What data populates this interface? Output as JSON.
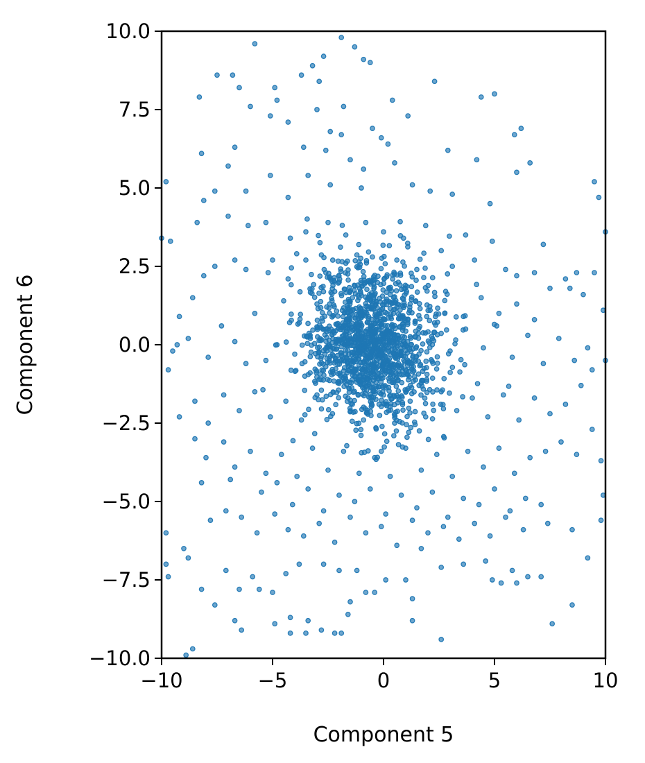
{
  "chart_data": {
    "type": "scatter",
    "xlabel": "Component 5",
    "ylabel": "Component 6",
    "xlim": [
      -10,
      10
    ],
    "ylim": [
      -10,
      10
    ],
    "xticks": [
      -10,
      -5,
      0,
      5,
      10
    ],
    "yticks": [
      -10.0,
      -7.5,
      -5.0,
      -2.5,
      0.0,
      2.5,
      5.0,
      7.5,
      10.0
    ],
    "xtick_labels": [
      "−10",
      "−5",
      "0",
      "5",
      "10"
    ],
    "ytick_labels": [
      "−10.0",
      "−7.5",
      "−5.0",
      "−2.5",
      "0.0",
      "2.5",
      "5.0",
      "7.5",
      "10.0"
    ],
    "grid": false,
    "legend": "none",
    "series": [
      {
        "color": "#1f77b4",
        "points": [
          [
            -1.9,
            9.8
          ],
          [
            -5.8,
            9.6
          ],
          [
            -1.3,
            9.5
          ],
          [
            -0.9,
            9.1
          ],
          [
            -0.6,
            9.0
          ],
          [
            -2.7,
            9.2
          ],
          [
            -3.2,
            8.9
          ],
          [
            -7.5,
            8.6
          ],
          [
            -6.8,
            8.6
          ],
          [
            -6.5,
            8.2
          ],
          [
            -4.9,
            8.2
          ],
          [
            -2.9,
            8.4
          ],
          [
            -4.8,
            7.8
          ],
          [
            -3.7,
            8.6
          ],
          [
            2.3,
            8.4
          ],
          [
            5.0,
            8.0
          ],
          [
            4.4,
            7.9
          ],
          [
            -8.3,
            7.9
          ],
          [
            -6.0,
            7.6
          ],
          [
            -5.1,
            7.3
          ],
          [
            -4.3,
            7.1
          ],
          [
            -3.0,
            7.5
          ],
          [
            -1.8,
            7.6
          ],
          [
            0.4,
            7.8
          ],
          [
            1.1,
            7.3
          ],
          [
            -2.4,
            6.8
          ],
          [
            -1.9,
            6.7
          ],
          [
            -0.5,
            6.9
          ],
          [
            -0.1,
            6.6
          ],
          [
            0.2,
            6.4
          ],
          [
            -6.7,
            6.3
          ],
          [
            -8.2,
            6.1
          ],
          [
            -7.0,
            5.7
          ],
          [
            -3.6,
            6.3
          ],
          [
            -2.6,
            6.2
          ],
          [
            -1.5,
            5.9
          ],
          [
            -0.9,
            5.6
          ],
          [
            0.5,
            5.8
          ],
          [
            2.9,
            6.2
          ],
          [
            4.2,
            5.9
          ],
          [
            5.9,
            6.7
          ],
          [
            6.2,
            6.9
          ],
          [
            6.6,
            5.8
          ],
          [
            6.0,
            5.5
          ],
          [
            -9.8,
            5.2
          ],
          [
            -8.1,
            4.6
          ],
          [
            -7.6,
            4.9
          ],
          [
            -6.2,
            4.9
          ],
          [
            -5.1,
            5.4
          ],
          [
            -4.3,
            4.7
          ],
          [
            -3.4,
            5.4
          ],
          [
            -2.4,
            5.1
          ],
          [
            -1.0,
            5.0
          ],
          [
            1.3,
            5.1
          ],
          [
            2.1,
            4.9
          ],
          [
            3.1,
            4.8
          ],
          [
            4.8,
            4.5
          ],
          [
            -8.4,
            3.9
          ],
          [
            -7.0,
            4.1
          ],
          [
            -6.1,
            3.8
          ],
          [
            -5.3,
            3.9
          ],
          [
            -4.2,
            3.4
          ],
          [
            -3.5,
            3.6
          ],
          [
            -2.5,
            3.9
          ],
          [
            -1.7,
            3.5
          ],
          [
            -0.8,
            3.9
          ],
          [
            0.0,
            3.6
          ],
          [
            0.9,
            3.4
          ],
          [
            1.9,
            3.8
          ],
          [
            3.7,
            3.5
          ],
          [
            4.9,
            3.3
          ],
          [
            9.5,
            5.2
          ],
          [
            9.7,
            4.7
          ],
          [
            -10.0,
            3.4
          ],
          [
            -9.6,
            3.3
          ],
          [
            -7.6,
            2.5
          ],
          [
            -6.7,
            2.7
          ],
          [
            -6.2,
            2.4
          ],
          [
            -5.0,
            2.7
          ],
          [
            -4.3,
            2.1
          ],
          [
            -3.5,
            2.7
          ],
          [
            -2.6,
            2.3
          ],
          [
            -1.7,
            2.6
          ],
          [
            -0.5,
            2.8
          ],
          [
            0.6,
            2.7
          ],
          [
            1.5,
            2.4
          ],
          [
            2.6,
            3.0
          ],
          [
            3.1,
            2.5
          ],
          [
            4.1,
            2.7
          ],
          [
            5.5,
            2.4
          ],
          [
            6.0,
            2.2
          ],
          [
            6.8,
            2.3
          ],
          [
            7.2,
            3.2
          ],
          [
            8.2,
            2.1
          ],
          [
            8.7,
            2.3
          ],
          [
            9.5,
            2.3
          ],
          [
            10.0,
            3.6
          ],
          [
            -8.1,
            2.2
          ],
          [
            -5.2,
            2.3
          ],
          [
            -7.3,
            0.6
          ],
          [
            -9.2,
            0.9
          ],
          [
            -8.6,
            1.5
          ],
          [
            -5.8,
            1.0
          ],
          [
            -4.5,
            1.4
          ],
          [
            -3.8,
            0.7
          ],
          [
            -3.0,
            1.3
          ],
          [
            -2.2,
            1.7
          ],
          [
            -1.4,
            1.5
          ],
          [
            -0.6,
            1.2
          ],
          [
            0.3,
            1.6
          ],
          [
            1.2,
            1.3
          ],
          [
            2.1,
            1.1
          ],
          [
            2.8,
            1.7
          ],
          [
            3.6,
            0.9
          ],
          [
            4.4,
            1.5
          ],
          [
            5.2,
            1.0
          ],
          [
            6.0,
            1.3
          ],
          [
            6.8,
            0.8
          ],
          [
            7.5,
            1.8
          ],
          [
            8.4,
            1.8
          ],
          [
            9.0,
            1.6
          ],
          [
            9.9,
            1.1
          ],
          [
            -9.7,
            -0.8
          ],
          [
            -9.3,
            0.0
          ],
          [
            -9.5,
            -0.2
          ],
          [
            -8.8,
            0.2
          ],
          [
            -7.9,
            -0.4
          ],
          [
            -6.7,
            0.1
          ],
          [
            -6.2,
            -0.6
          ],
          [
            -5.3,
            -0.5
          ],
          [
            -4.8,
            0.0
          ],
          [
            -4.0,
            -0.3
          ],
          [
            -3.3,
            0.2
          ],
          [
            -2.6,
            -0.7
          ],
          [
            -1.8,
            0.3
          ],
          [
            -1.1,
            -0.2
          ],
          [
            -0.4,
            0.4
          ],
          [
            0.2,
            -0.5
          ],
          [
            0.9,
            0.1
          ],
          [
            1.6,
            -0.3
          ],
          [
            2.3,
            0.4
          ],
          [
            3.0,
            -0.2
          ],
          [
            3.7,
            0.5
          ],
          [
            4.5,
            -0.1
          ],
          [
            5.1,
            0.6
          ],
          [
            5.8,
            -0.4
          ],
          [
            6.5,
            0.3
          ],
          [
            7.2,
            -0.6
          ],
          [
            7.9,
            0.2
          ],
          [
            8.6,
            -0.5
          ],
          [
            9.4,
            -0.8
          ],
          [
            10.0,
            -0.5
          ],
          [
            9.2,
            -0.1
          ],
          [
            -9.2,
            -2.3
          ],
          [
            -8.5,
            -1.8
          ],
          [
            -7.9,
            -2.5
          ],
          [
            -7.2,
            -1.6
          ],
          [
            -6.5,
            -2.1
          ],
          [
            -5.8,
            -1.5
          ],
          [
            -5.1,
            -2.3
          ],
          [
            -4.4,
            -1.8
          ],
          [
            -3.7,
            -2.4
          ],
          [
            -3.0,
            -1.6
          ],
          [
            -2.3,
            -2.2
          ],
          [
            -1.6,
            -1.7
          ],
          [
            -0.9,
            -2.4
          ],
          [
            -0.2,
            -1.9
          ],
          [
            0.5,
            -2.5
          ],
          [
            1.2,
            -1.8
          ],
          [
            1.9,
            -2.3
          ],
          [
            2.6,
            -1.5
          ],
          [
            3.3,
            -2.1
          ],
          [
            4.0,
            -1.7
          ],
          [
            4.7,
            -2.3
          ],
          [
            5.4,
            -1.6
          ],
          [
            6.1,
            -2.4
          ],
          [
            6.8,
            -1.7
          ],
          [
            7.5,
            -2.2
          ],
          [
            8.2,
            -1.9
          ],
          [
            8.9,
            -1.3
          ],
          [
            9.4,
            -2.7
          ],
          [
            -8.5,
            -3.0
          ],
          [
            -8.0,
            -3.6
          ],
          [
            -7.2,
            -3.1
          ],
          [
            -6.7,
            -3.9
          ],
          [
            -6.0,
            -3.4
          ],
          [
            -5.3,
            -4.1
          ],
          [
            -4.6,
            -3.5
          ],
          [
            -3.9,
            -4.2
          ],
          [
            -3.2,
            -3.3
          ],
          [
            -2.5,
            -4.0
          ],
          [
            -1.8,
            -3.4
          ],
          [
            -1.1,
            -4.1
          ],
          [
            -0.4,
            -3.6
          ],
          [
            0.3,
            -4.2
          ],
          [
            1.0,
            -3.3
          ],
          [
            1.7,
            -4.0
          ],
          [
            2.4,
            -3.5
          ],
          [
            3.1,
            -4.2
          ],
          [
            3.8,
            -3.4
          ],
          [
            4.5,
            -3.9
          ],
          [
            5.2,
            -3.3
          ],
          [
            5.9,
            -4.1
          ],
          [
            6.6,
            -3.6
          ],
          [
            7.3,
            -3.4
          ],
          [
            8.0,
            -3.1
          ],
          [
            8.7,
            -3.5
          ],
          [
            9.8,
            -3.7
          ],
          [
            -8.2,
            -4.4
          ],
          [
            -6.9,
            -4.3
          ],
          [
            -5.5,
            -4.7
          ],
          [
            -4.8,
            -4.4
          ],
          [
            -4.1,
            -5.1
          ],
          [
            -3.4,
            -4.6
          ],
          [
            -2.7,
            -5.3
          ],
          [
            -2.0,
            -4.8
          ],
          [
            -1.3,
            -5.0
          ],
          [
            -0.6,
            -4.6
          ],
          [
            0.1,
            -5.4
          ],
          [
            0.8,
            -4.8
          ],
          [
            1.5,
            -5.2
          ],
          [
            2.2,
            -4.7
          ],
          [
            2.9,
            -5.5
          ],
          [
            3.6,
            -4.9
          ],
          [
            4.3,
            -5.1
          ],
          [
            5.0,
            -4.6
          ],
          [
            5.7,
            -5.3
          ],
          [
            6.4,
            -4.9
          ],
          [
            7.1,
            -5.1
          ],
          [
            9.9,
            -4.8
          ],
          [
            -9.8,
            -6.0
          ],
          [
            -9.0,
            -6.5
          ],
          [
            -7.8,
            -5.6
          ],
          [
            -7.1,
            -5.3
          ],
          [
            -6.4,
            -5.5
          ],
          [
            -5.7,
            -6.0
          ],
          [
            -4.9,
            -5.4
          ],
          [
            -4.3,
            -5.9
          ],
          [
            -3.6,
            -6.1
          ],
          [
            -2.9,
            -5.7
          ],
          [
            -2.2,
            -6.3
          ],
          [
            -1.5,
            -5.5
          ],
          [
            -0.8,
            -6.0
          ],
          [
            -0.1,
            -5.8
          ],
          [
            0.6,
            -6.4
          ],
          [
            1.3,
            -5.6
          ],
          [
            2.0,
            -6.0
          ],
          [
            2.7,
            -5.8
          ],
          [
            3.4,
            -6.2
          ],
          [
            4.1,
            -5.7
          ],
          [
            4.8,
            -6.1
          ],
          [
            5.5,
            -5.5
          ],
          [
            6.3,
            -5.9
          ],
          [
            7.4,
            -5.7
          ],
          [
            8.5,
            -5.9
          ],
          [
            9.8,
            -5.6
          ],
          [
            -9.7,
            -7.4
          ],
          [
            -8.8,
            -6.8
          ],
          [
            -8.2,
            -7.8
          ],
          [
            -7.1,
            -7.2
          ],
          [
            -6.5,
            -7.8
          ],
          [
            -5.9,
            -7.4
          ],
          [
            -5.0,
            -7.9
          ],
          [
            -4.4,
            -7.3
          ],
          [
            -3.8,
            -7.0
          ],
          [
            -2.7,
            -7.0
          ],
          [
            -2.0,
            -7.2
          ],
          [
            -1.2,
            -7.2
          ],
          [
            -0.8,
            -7.9
          ],
          [
            -0.4,
            -7.9
          ],
          [
            0.1,
            -7.5
          ],
          [
            1.0,
            -7.5
          ],
          [
            1.7,
            -6.5
          ],
          [
            2.6,
            -7.1
          ],
          [
            3.6,
            -7.0
          ],
          [
            4.6,
            -6.9
          ],
          [
            4.9,
            -7.5
          ],
          [
            5.3,
            -7.6
          ],
          [
            5.8,
            -7.2
          ],
          [
            6.0,
            -7.6
          ],
          [
            6.5,
            -7.4
          ],
          [
            7.1,
            -7.4
          ],
          [
            7.6,
            -8.9
          ],
          [
            8.5,
            -8.3
          ],
          [
            9.2,
            -6.8
          ],
          [
            -9.8,
            -7.0
          ],
          [
            -8.6,
            -9.7
          ],
          [
            -8.9,
            -9.9
          ],
          [
            -7.6,
            -8.3
          ],
          [
            -6.7,
            -8.8
          ],
          [
            -6.4,
            -9.1
          ],
          [
            -5.6,
            -7.8
          ],
          [
            -4.9,
            -8.9
          ],
          [
            -4.2,
            -8.7
          ],
          [
            -4.2,
            -9.2
          ],
          [
            -3.5,
            -9.2
          ],
          [
            -3.4,
            -8.8
          ],
          [
            -2.8,
            -9.1
          ],
          [
            -2.2,
            -9.2
          ],
          [
            -1.9,
            -9.2
          ],
          [
            -1.6,
            -8.6
          ],
          [
            -1.5,
            -8.2
          ],
          [
            1.3,
            -8.1
          ],
          [
            1.3,
            -8.8
          ],
          [
            2.6,
            -9.4
          ]
        ],
        "cluster": {
          "center": [
            -0.5,
            0.0
          ],
          "spread": [
            1.5,
            1.3
          ],
          "count": 1400
        }
      }
    ]
  }
}
